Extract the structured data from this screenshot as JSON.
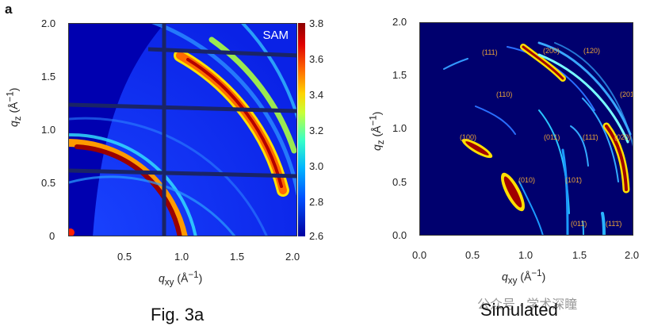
{
  "panel_letter": "a",
  "left_plot": {
    "label": "SAM",
    "x_ticks": [
      "0.5",
      "1.0",
      "1.5",
      "2.0"
    ],
    "y_ticks": [
      "0",
      "0.5",
      "1.0",
      "1.5",
      "2.0"
    ],
    "xlabel": "q_xy (Å⁻¹)",
    "ylabel": "q_z (Å⁻¹)",
    "colorbar_ticks": [
      "3.8",
      "3.6",
      "3.4",
      "3.2",
      "3.0",
      "2.8",
      "2.6"
    ]
  },
  "right_plot": {
    "x_ticks": [
      "0.0",
      "0.5",
      "1.0",
      "1.5",
      "2.0"
    ],
    "y_ticks": [
      "0.0",
      "0.5",
      "1.0",
      "1.5",
      "2.0"
    ],
    "xlabel": "q_xy (Å⁻¹)",
    "ylabel": "q_z (Å⁻¹)",
    "peak_labels": [
      "(111)",
      "(200)",
      "(120)",
      "(110)",
      "(201)",
      "(100)",
      "(011)",
      "(111̄)",
      "(020)",
      "(010)",
      "(101̄)",
      "(011̄)",
      "(11̄1̄)"
    ]
  },
  "captions": {
    "left": "Fig. 3a",
    "right": "Simulated"
  },
  "watermark": "公众号 · 学术深瞳",
  "colors": {
    "background": "#0000ff",
    "hot": "#8b0000",
    "sim_bg": "#00007a",
    "peak_label": "#e8a23a"
  }
}
